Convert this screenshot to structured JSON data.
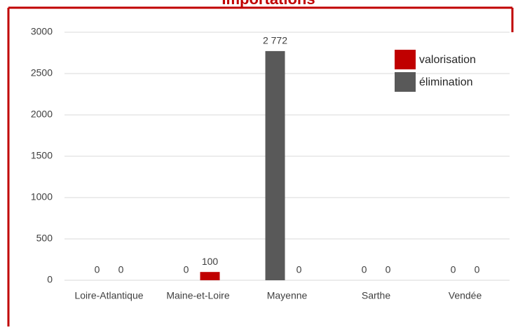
{
  "chart_data": {
    "type": "bar",
    "title": "Importations",
    "categories": [
      "Loire-Atlantique",
      "Maine-et-Loire",
      "Mayenne",
      "Sarthe",
      "Vendée"
    ],
    "series": [
      {
        "name": "élimination",
        "color": "#595959",
        "values": [
          0,
          0,
          2772,
          0,
          0
        ],
        "value_labels": [
          "0",
          "0",
          "2 772",
          "0",
          "0"
        ]
      },
      {
        "name": "valorisation",
        "color": "#c00000",
        "values": [
          0,
          100,
          0,
          0,
          0
        ]
      }
    ],
    "ylim": [
      0,
      3000
    ],
    "yticks": [
      0,
      500,
      1000,
      1500,
      2000,
      2500,
      3000
    ],
    "grid": true,
    "legend": "top-right"
  }
}
